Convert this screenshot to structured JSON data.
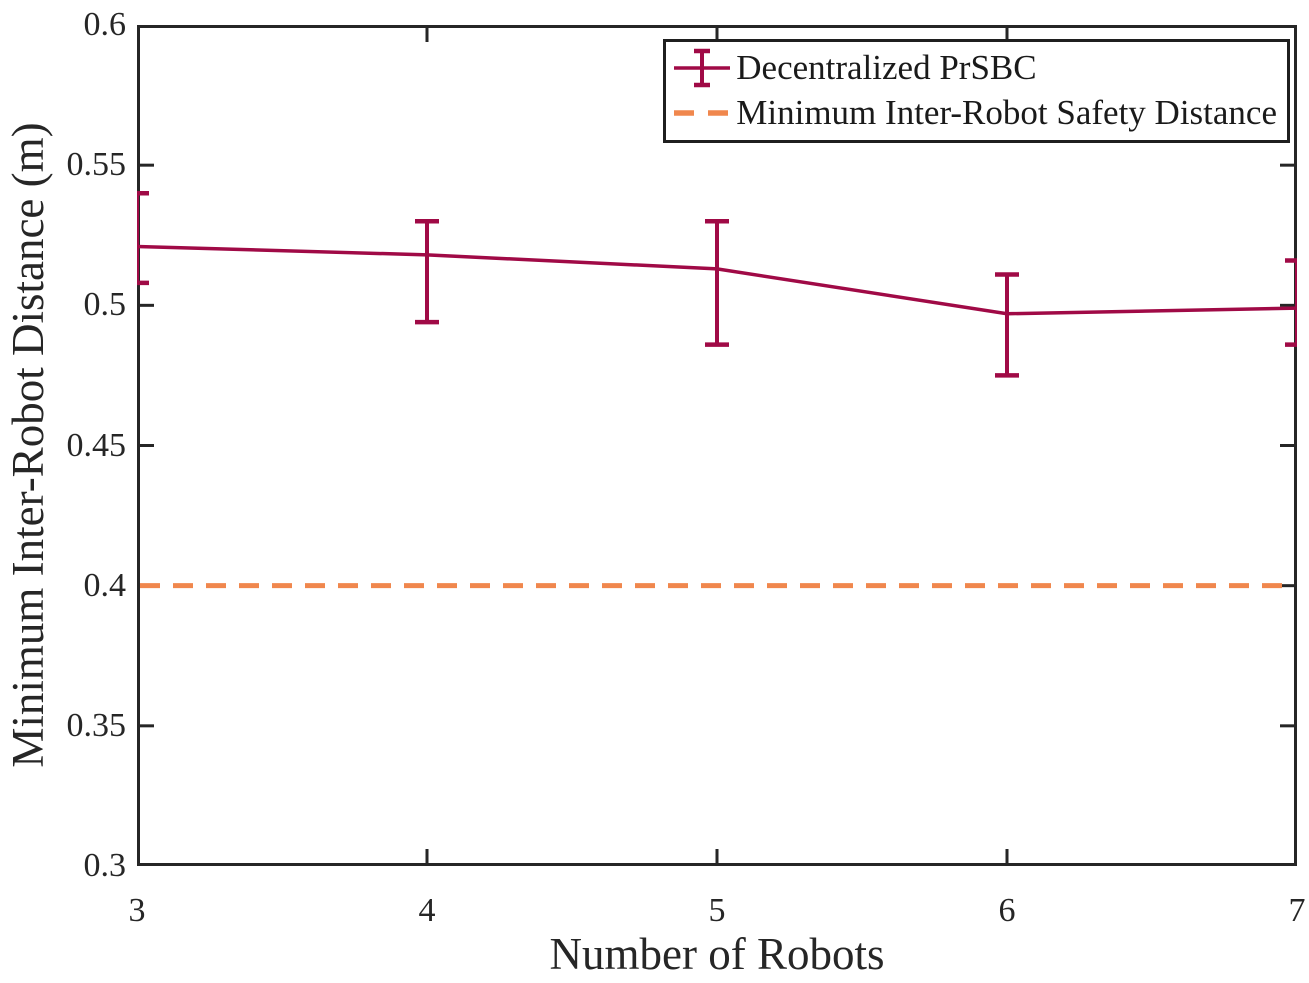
{
  "figure": {
    "background": "#FFFFFF",
    "axis_color": "#262626",
    "text_color": "#262626"
  },
  "chart_data": {
    "type": "line",
    "title": "",
    "xlabel": "Number of Robots",
    "ylabel": "Minimum Inter-Robot Distance (m)",
    "xlim": [
      3,
      7
    ],
    "ylim": [
      0.3,
      0.6
    ],
    "x_ticks": [
      3,
      4,
      5,
      6,
      7
    ],
    "x_tick_labels": [
      "3",
      "4",
      "5",
      "6",
      "7"
    ],
    "y_ticks": [
      0.3,
      0.35,
      0.4,
      0.45,
      0.5,
      0.55,
      0.6
    ],
    "y_tick_labels": [
      "0.3",
      "0.35",
      "0.4",
      "0.45",
      "0.5",
      "0.55",
      "0.6"
    ],
    "grid": false,
    "legend_position": "top-right",
    "series": [
      {
        "name": "Decentralized PrSBC",
        "type": "errorbar-line",
        "color": "#A00A46",
        "x": [
          3,
          4,
          5,
          6,
          7
        ],
        "y": [
          0.521,
          0.518,
          0.513,
          0.497,
          0.499
        ],
        "y_upper": [
          0.54,
          0.53,
          0.53,
          0.511,
          0.516
        ],
        "y_lower": [
          0.508,
          0.494,
          0.486,
          0.475,
          0.486
        ]
      },
      {
        "name": "Minimum Inter-Robot Safety Distance",
        "type": "dashed-hline",
        "color": "#F0874D",
        "y": 0.4
      }
    ]
  },
  "legend": {
    "items": [
      {
        "label": "Decentralized PrSBC",
        "icon": "errorbar-icon",
        "color": "#A00A46"
      },
      {
        "label": "Minimum Inter-Robot Safety Distance",
        "icon": "dashed-line-icon",
        "color": "#F0874D"
      }
    ]
  }
}
